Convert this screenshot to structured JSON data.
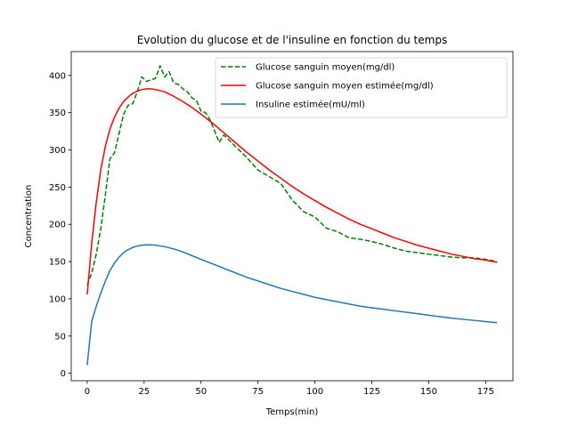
{
  "chart_data": {
    "type": "line",
    "title": "Evolution du glucose et de l'insuline en fonction du temps",
    "xlabel": "Temps(min)",
    "ylabel": "Concentration",
    "xlim": [
      -7,
      187
    ],
    "ylim": [
      -10,
      432
    ],
    "xticks": [
      0,
      25,
      50,
      75,
      100,
      125,
      150,
      175
    ],
    "yticks": [
      0,
      50,
      100,
      150,
      200,
      250,
      300,
      350,
      400
    ],
    "grid": false,
    "legend_position": "top-right",
    "series": [
      {
        "name": "Glucose sanguin moyen(mg/dl)",
        "color": "#008000",
        "style": "dashed",
        "points": [
          [
            0,
            118
          ],
          [
            2,
            135
          ],
          [
            4,
            160
          ],
          [
            6,
            195
          ],
          [
            8,
            240
          ],
          [
            10,
            288
          ],
          [
            12,
            296
          ],
          [
            14,
            322
          ],
          [
            16,
            348
          ],
          [
            18,
            360
          ],
          [
            20,
            362
          ],
          [
            22,
            378
          ],
          [
            24,
            398
          ],
          [
            26,
            392
          ],
          [
            28,
            394
          ],
          [
            30,
            396
          ],
          [
            32,
            413
          ],
          [
            34,
            398
          ],
          [
            36,
            405
          ],
          [
            38,
            390
          ],
          [
            40,
            388
          ],
          [
            42,
            382
          ],
          [
            44,
            378
          ],
          [
            46,
            370
          ],
          [
            48,
            366
          ],
          [
            50,
            352
          ],
          [
            52,
            350
          ],
          [
            54,
            340
          ],
          [
            56,
            325
          ],
          [
            58,
            310
          ],
          [
            60,
            320
          ],
          [
            65,
            305
          ],
          [
            70,
            290
          ],
          [
            75,
            273
          ],
          [
            80,
            264
          ],
          [
            85,
            255
          ],
          [
            90,
            233
          ],
          [
            95,
            217
          ],
          [
            100,
            210
          ],
          [
            105,
            195
          ],
          [
            110,
            190
          ],
          [
            115,
            182
          ],
          [
            120,
            180
          ],
          [
            125,
            177
          ],
          [
            130,
            173
          ],
          [
            135,
            168
          ],
          [
            140,
            164
          ],
          [
            145,
            162
          ],
          [
            150,
            160
          ],
          [
            155,
            158
          ],
          [
            160,
            156
          ],
          [
            165,
            155
          ],
          [
            170,
            155
          ],
          [
            175,
            153
          ],
          [
            180,
            150
          ]
        ]
      },
      {
        "name": "Glucose sanguin moyen estimée(mg/dl)",
        "color": "#ff0000",
        "style": "solid",
        "points": [
          [
            0,
            106
          ],
          [
            2,
            175
          ],
          [
            4,
            230
          ],
          [
            6,
            274
          ],
          [
            8,
            305
          ],
          [
            10,
            328
          ],
          [
            12,
            344
          ],
          [
            14,
            356
          ],
          [
            16,
            365
          ],
          [
            18,
            371
          ],
          [
            20,
            376
          ],
          [
            22,
            379
          ],
          [
            24,
            381
          ],
          [
            26,
            382
          ],
          [
            28,
            382
          ],
          [
            30,
            381
          ],
          [
            34,
            378
          ],
          [
            38,
            372
          ],
          [
            42,
            365
          ],
          [
            46,
            357
          ],
          [
            50,
            348
          ],
          [
            55,
            336
          ],
          [
            60,
            323
          ],
          [
            65,
            310
          ],
          [
            70,
            297
          ],
          [
            75,
            285
          ],
          [
            80,
            273
          ],
          [
            85,
            262
          ],
          [
            90,
            251
          ],
          [
            95,
            241
          ],
          [
            100,
            232
          ],
          [
            105,
            223
          ],
          [
            110,
            215
          ],
          [
            115,
            207
          ],
          [
            120,
            200
          ],
          [
            125,
            194
          ],
          [
            130,
            188
          ],
          [
            135,
            182
          ],
          [
            140,
            177
          ],
          [
            145,
            172
          ],
          [
            150,
            168
          ],
          [
            155,
            164
          ],
          [
            160,
            160
          ],
          [
            165,
            157
          ],
          [
            170,
            154
          ],
          [
            175,
            152
          ],
          [
            180,
            149
          ]
        ]
      },
      {
        "name": "Insuline estimée(mU/ml)",
        "color": "#1f77b4",
        "style": "solid",
        "points": [
          [
            0,
            11
          ],
          [
            2,
            70
          ],
          [
            4,
            90
          ],
          [
            6,
            108
          ],
          [
            8,
            124
          ],
          [
            10,
            138
          ],
          [
            12,
            148
          ],
          [
            14,
            156
          ],
          [
            16,
            162
          ],
          [
            18,
            166
          ],
          [
            20,
            169
          ],
          [
            22,
            171
          ],
          [
            24,
            172
          ],
          [
            26,
            172.5
          ],
          [
            28,
            172.5
          ],
          [
            30,
            172
          ],
          [
            34,
            170
          ],
          [
            38,
            167
          ],
          [
            42,
            163
          ],
          [
            46,
            158
          ],
          [
            50,
            153
          ],
          [
            55,
            147
          ],
          [
            60,
            141
          ],
          [
            65,
            135
          ],
          [
            70,
            129
          ],
          [
            75,
            124
          ],
          [
            80,
            119
          ],
          [
            85,
            114
          ],
          [
            90,
            110
          ],
          [
            95,
            106
          ],
          [
            100,
            102
          ],
          [
            105,
            99
          ],
          [
            110,
            96
          ],
          [
            115,
            93
          ],
          [
            120,
            90
          ],
          [
            125,
            88
          ],
          [
            130,
            86
          ],
          [
            135,
            84
          ],
          [
            140,
            82
          ],
          [
            145,
            80
          ],
          [
            150,
            78
          ],
          [
            155,
            76
          ],
          [
            160,
            74
          ],
          [
            165,
            72.5
          ],
          [
            170,
            71
          ],
          [
            175,
            69.5
          ],
          [
            180,
            68
          ]
        ]
      }
    ]
  }
}
